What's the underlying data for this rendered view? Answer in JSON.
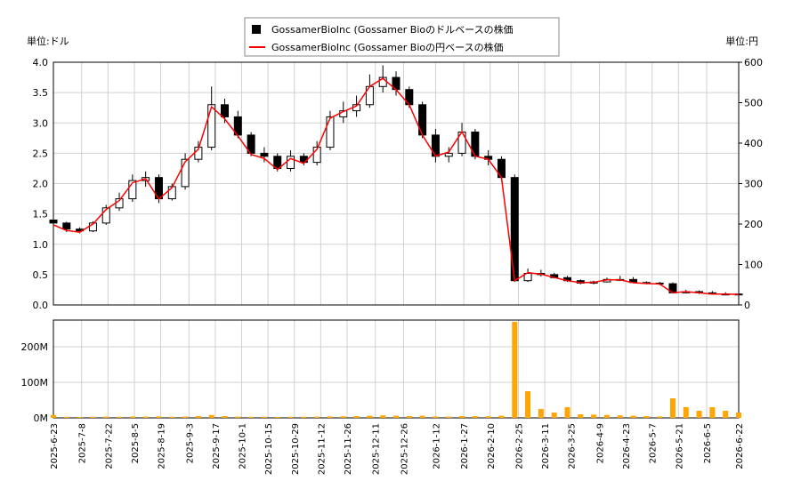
{
  "chart_data": [
    {
      "type": "candlestick",
      "ylabel": "単位:ドル",
      "y2label": "単位:円",
      "x": [
        "2025-6-23",
        "2025-6-30",
        "2025-7-7",
        "2025-7-14",
        "2025-7-21",
        "2025-7-28",
        "2025-8-4",
        "2025-8-11",
        "2025-8-18",
        "2025-8-25",
        "2025-9-1",
        "2025-9-8",
        "2025-9-15",
        "2025-9-22",
        "2025-9-29",
        "2025-10-6",
        "2025-10-13",
        "2025-10-20",
        "2025-10-27",
        "2025-11-3",
        "2025-11-10",
        "2025-11-17",
        "2025-11-24",
        "2025-12-1",
        "2025-12-8",
        "2025-12-15",
        "2025-12-22",
        "2025-12-29",
        "2026-1-5",
        "2026-1-12",
        "2026-1-19",
        "2026-1-26",
        "2026-2-2",
        "2026-2-9",
        "2026-2-16",
        "2026-2-23",
        "2026-3-2",
        "2026-3-9",
        "2026-3-16",
        "2026-3-23",
        "2026-3-30",
        "2026-4-6",
        "2026-4-13",
        "2026-4-20",
        "2026-4-27",
        "2026-5-4",
        "2026-5-11",
        "2026-5-18",
        "2026-5-25",
        "2026-6-1",
        "2026-6-8",
        "2026-6-15",
        "2026-6-22"
      ],
      "xlim": [
        "2025-6-23",
        "2026-6-22"
      ],
      "series": [
        {
          "name": "GossamerBioInc (Gossamer Bioのドルベースの株価",
          "color": "#000000",
          "open": [
            1.4,
            1.35,
            1.25,
            1.22,
            1.35,
            1.6,
            1.75,
            2.05,
            2.1,
            1.75,
            1.95,
            2.4,
            2.6,
            3.3,
            3.1,
            2.8,
            2.5,
            2.45,
            2.25,
            2.45,
            2.35,
            2.6,
            3.1,
            3.2,
            3.3,
            3.6,
            3.75,
            3.55,
            3.3,
            2.8,
            2.45,
            2.5,
            2.85,
            2.45,
            2.4,
            2.1,
            0.4,
            0.52,
            0.5,
            0.45,
            0.4,
            0.36,
            0.38,
            0.42,
            0.42,
            0.37,
            0.36,
            0.35,
            0.2,
            0.22,
            0.2,
            0.18,
            0.18
          ],
          "high": [
            1.42,
            1.37,
            1.28,
            1.38,
            1.65,
            1.85,
            2.15,
            2.2,
            2.15,
            2.0,
            2.5,
            2.7,
            3.6,
            3.4,
            3.2,
            2.85,
            2.6,
            2.5,
            2.55,
            2.5,
            2.7,
            3.2,
            3.35,
            3.45,
            3.8,
            3.95,
            3.85,
            3.6,
            3.35,
            2.9,
            2.6,
            3.0,
            2.9,
            2.55,
            2.45,
            2.15,
            0.6,
            0.58,
            0.53,
            0.48,
            0.42,
            0.4,
            0.45,
            0.48,
            0.46,
            0.39,
            0.38,
            0.37,
            0.25,
            0.24,
            0.23,
            0.21,
            0.2
          ],
          "low": [
            1.3,
            1.2,
            1.18,
            1.2,
            1.32,
            1.55,
            1.7,
            1.95,
            1.68,
            1.72,
            1.9,
            2.35,
            2.55,
            3.0,
            2.75,
            2.45,
            2.35,
            2.2,
            2.2,
            2.3,
            2.3,
            2.55,
            3.0,
            3.1,
            3.25,
            3.5,
            3.45,
            3.25,
            2.75,
            2.35,
            2.35,
            2.45,
            2.4,
            2.3,
            2.05,
            0.38,
            0.38,
            0.47,
            0.44,
            0.38,
            0.34,
            0.34,
            0.37,
            0.4,
            0.36,
            0.34,
            0.33,
            0.19,
            0.19,
            0.18,
            0.17,
            0.16,
            0.15
          ],
          "close": [
            1.35,
            1.25,
            1.22,
            1.35,
            1.6,
            1.75,
            2.05,
            2.1,
            1.75,
            1.95,
            2.4,
            2.6,
            3.3,
            3.1,
            2.8,
            2.5,
            2.45,
            2.25,
            2.45,
            2.35,
            2.6,
            3.1,
            3.2,
            3.3,
            3.6,
            3.75,
            3.55,
            3.3,
            2.8,
            2.45,
            2.5,
            2.85,
            2.45,
            2.4,
            2.1,
            0.4,
            0.52,
            0.5,
            0.45,
            0.4,
            0.36,
            0.38,
            0.42,
            0.42,
            0.37,
            0.36,
            0.35,
            0.2,
            0.22,
            0.2,
            0.18,
            0.18,
            0.17
          ]
        },
        {
          "name": "GossamerBioInc (Gossamer Bioの円ベースの株価",
          "color": "#ff0000",
          "axis": "y2",
          "values": [
            198,
            184,
            180,
            200,
            236,
            258,
            302,
            312,
            262,
            290,
            354,
            385,
            490,
            460,
            418,
            372,
            362,
            335,
            362,
            350,
            385,
            462,
            478,
            492,
            540,
            560,
            532,
            495,
            420,
            368,
            378,
            428,
            368,
            360,
            315,
            60,
            80,
            76,
            68,
            60,
            55,
            56,
            62,
            62,
            55,
            53,
            52,
            30,
            33,
            30,
            27,
            27,
            26
          ]
        }
      ],
      "ylim": [
        0,
        4
      ],
      "yticks": [
        {
          "value": 0,
          "label": "0.0"
        },
        0.5,
        {
          "value": 1,
          "label": "1.0"
        },
        1.5,
        {
          "value": 2,
          "label": "2.0"
        },
        2.5,
        {
          "value": 3,
          "label": "3.0"
        },
        3.5,
        {
          "value": 4,
          "label": "4.0"
        }
      ],
      "y2lim": [
        0,
        600
      ],
      "y2ticks": [
        0,
        100,
        200,
        300,
        400,
        500,
        600
      ],
      "grid": true
    },
    {
      "type": "bar",
      "x": [
        "2025-6-23",
        "2025-6-30",
        "2025-7-7",
        "2025-7-14",
        "2025-7-21",
        "2025-7-28",
        "2025-8-4",
        "2025-8-11",
        "2025-8-18",
        "2025-8-25",
        "2025-9-1",
        "2025-9-8",
        "2025-9-15",
        "2025-9-22",
        "2025-9-29",
        "2025-10-6",
        "2025-10-13",
        "2025-10-20",
        "2025-10-27",
        "2025-11-3",
        "2025-11-10",
        "2025-11-17",
        "2025-11-24",
        "2025-12-1",
        "2025-12-8",
        "2025-12-15",
        "2025-12-22",
        "2025-12-29",
        "2026-1-5",
        "2026-1-12",
        "2026-1-19",
        "2026-1-26",
        "2026-2-2",
        "2026-2-9",
        "2026-2-16",
        "2026-2-23",
        "2026-3-2",
        "2026-3-9",
        "2026-3-16",
        "2026-3-23",
        "2026-3-30",
        "2026-4-6",
        "2026-4-13",
        "2026-4-20",
        "2026-4-27",
        "2026-5-4",
        "2026-5-11",
        "2026-5-18",
        "2026-5-25",
        "2026-6-1",
        "2026-6-8",
        "2026-6-15",
        "2026-6-22"
      ],
      "xlim": [
        "2025-6-23",
        "2026-6-22"
      ],
      "values": [
        8000000,
        3000000,
        2500000,
        3000000,
        3500000,
        3000000,
        4000000,
        3500000,
        4000000,
        3000000,
        3500000,
        5000000,
        8000000,
        5000000,
        3500000,
        3000000,
        3000000,
        2500000,
        3000000,
        3000000,
        3500000,
        4000000,
        4500000,
        5000000,
        6000000,
        7000000,
        6000000,
        5000000,
        6000000,
        4000000,
        3500000,
        5000000,
        5000000,
        4500000,
        6000000,
        270000000,
        75000000,
        25000000,
        15000000,
        30000000,
        10000000,
        9000000,
        8000000,
        7000000,
        6000000,
        5000000,
        4000000,
        55000000,
        30000000,
        20000000,
        30000000,
        20000000,
        15000000
      ],
      "color": "#ffa500",
      "ylim": [
        0,
        275000000
      ],
      "yticks": [
        {
          "value": 0,
          "label": "0M"
        },
        {
          "value": 100000000,
          "label": "100M"
        },
        {
          "value": 200000000,
          "label": "200M"
        }
      ],
      "xticks": [
        "2025-6-23",
        "2025-7-8",
        "2025-7-22",
        "2025-8-5",
        "2025-8-19",
        "2025-9-3",
        "2025-9-17",
        "2025-10-1",
        "2025-10-15",
        "2025-10-29",
        "2025-11-12",
        "2025-11-26",
        "2025-12-11",
        "2025-12-26",
        "2026-1-12",
        "2026-1-27",
        "2026-2-10",
        "2026-2-25",
        "2026-3-11",
        "2026-3-25",
        "2026-4-9",
        "2026-4-23",
        "2026-5-7",
        "2026-5-21",
        "2026-6-5",
        "2026-6-22"
      ],
      "grid": true
    }
  ]
}
